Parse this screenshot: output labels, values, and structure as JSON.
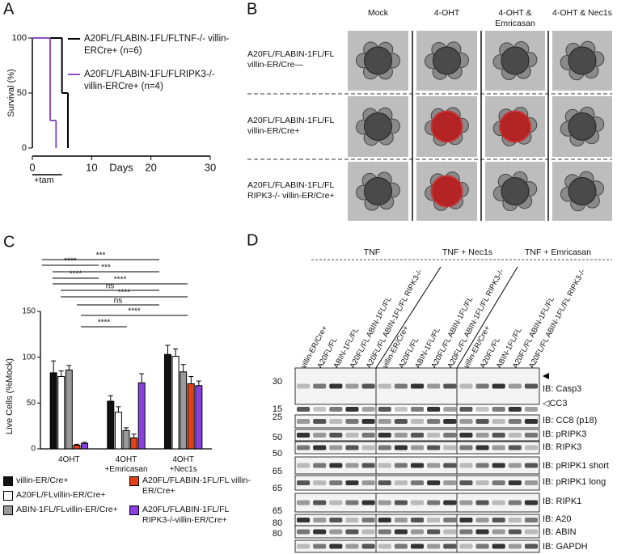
{
  "panels": {
    "a": "A",
    "b": "B",
    "c": "C",
    "d": "D"
  },
  "chart_data": [
    {
      "type": "step",
      "ylabel": "Survival (%)",
      "xlabel": "Days",
      "annotation": "+tam",
      "xlim": [
        0,
        30
      ],
      "ylim": [
        0,
        100
      ],
      "xticks": [
        0,
        10,
        20,
        30
      ],
      "yticks": [
        0,
        50,
        100
      ],
      "series": [
        {
          "name": "A20FL/FLABIN-1FL/FLTNF-/- villin-ERCre+ (n=6)",
          "color": "#000000",
          "x": [
            0,
            5,
            6
          ],
          "values": [
            100,
            50,
            0
          ]
        },
        {
          "name": "A20FL/FLABIN-1FL/FLRIPK3-/- villin-ERCre+ (n=4)",
          "color": "#8b4fc9",
          "x": [
            0,
            3,
            4
          ],
          "values": [
            100,
            25,
            0
          ]
        }
      ]
    },
    {
      "type": "bar",
      "ylabel": "Live Cells (%Mock)",
      "categories": [
        "4OHT",
        "4OHT +Emricasan",
        "4OHT +Nec1s"
      ],
      "ylim": [
        0,
        150
      ],
      "yticks": [
        0,
        50,
        100,
        150
      ],
      "series": [
        {
          "name": "villin-ER/Cre+",
          "color": "#111111",
          "values": [
            83,
            52,
            103
          ],
          "errors": [
            13,
            6,
            10
          ]
        },
        {
          "name": "A20FL/FLvillin-ER/Cre+",
          "color": "#ffffff",
          "values": [
            79,
            40,
            101
          ],
          "errors": [
            6,
            6,
            8
          ]
        },
        {
          "name": "ABIN-1FL/FLvillin-ER/Cre+",
          "color": "#999999",
          "values": [
            86,
            20,
            84
          ],
          "errors": [
            5,
            3,
            8
          ]
        },
        {
          "name": "A20FL/FLABIN-1FL/FL villin-ER/Cre+",
          "color": "#e0401a",
          "values": [
            4,
            12,
            71
          ],
          "errors": [
            1,
            4,
            8
          ]
        },
        {
          "name": "A20FL/FLABIN-1FL/FL RIPK3-/-villin-ER/Cre+",
          "color": "#8a3fe0",
          "values": [
            6,
            72,
            69
          ],
          "errors": [
            1,
            10,
            5
          ]
        }
      ],
      "annotations": [
        "***",
        "****",
        "***",
        "****",
        "****",
        "ns",
        "****",
        "ns",
        "****",
        "****"
      ]
    }
  ],
  "microscopy": {
    "columns": [
      "Mock",
      "4-OHT",
      "4-OHT & Emricasan",
      "4-OHT & Nec1s"
    ],
    "rows": [
      "A20FL/FLABIN-1FL/FL villin-ER/Cre—",
      "A20FL/FLABIN-1FL/FL villin-ER/Cre+",
      "A20FL/FLABIN-1FL/FL RIPK3-/- villin-ER/Cre+"
    ]
  },
  "western_blot": {
    "conditions": [
      "TNF",
      "TNF + Nec1s",
      "TNF + Emricasan"
    ],
    "lanes": [
      "villin-ER/Cre+",
      "A20FL/FL",
      "ABIN-1FL/FL",
      "A20FL/FL ABIN-1FL/FL",
      "A20FL/FL ABIN-1FL/FL RIPK3-/-",
      "villin-ER/Cre+",
      "A20FL/FL",
      "ABIN-1FL/FL",
      "A20FL/FL ABIN-1FL/FL",
      "A20FL/FL ABIN-1FL/FL RIPK3-/-",
      "villin-ER/Cre+",
      "A20FL/FL",
      "ABIN-1FL/FL",
      "A20FL/FL ABIN-1FL/FL",
      "A20FL/FL ABIN-1FL/FL RIPK3-/-"
    ],
    "blots": [
      {
        "label": "IB: Casp3",
        "marker": "30"
      },
      {
        "label": "◁CC3",
        "marker": "15"
      },
      {
        "label": "IB: CC8 (p18)",
        "marker": "25"
      },
      {
        "label": "IB: pRIPK3",
        "marker": "50"
      },
      {
        "label": "IB: RIPK3",
        "marker": "50"
      },
      {
        "label": "IB: pRIPK1 short",
        "marker": "65"
      },
      {
        "label": "IB: pRIPK1 long",
        "marker": "65"
      },
      {
        "label": "IB: RIPK1",
        "marker": "65"
      },
      {
        "label": "IB: A20",
        "marker": "80"
      },
      {
        "label": "IB: ABIN",
        "marker": "80"
      },
      {
        "label": "IB: GAPDH"
      }
    ]
  }
}
